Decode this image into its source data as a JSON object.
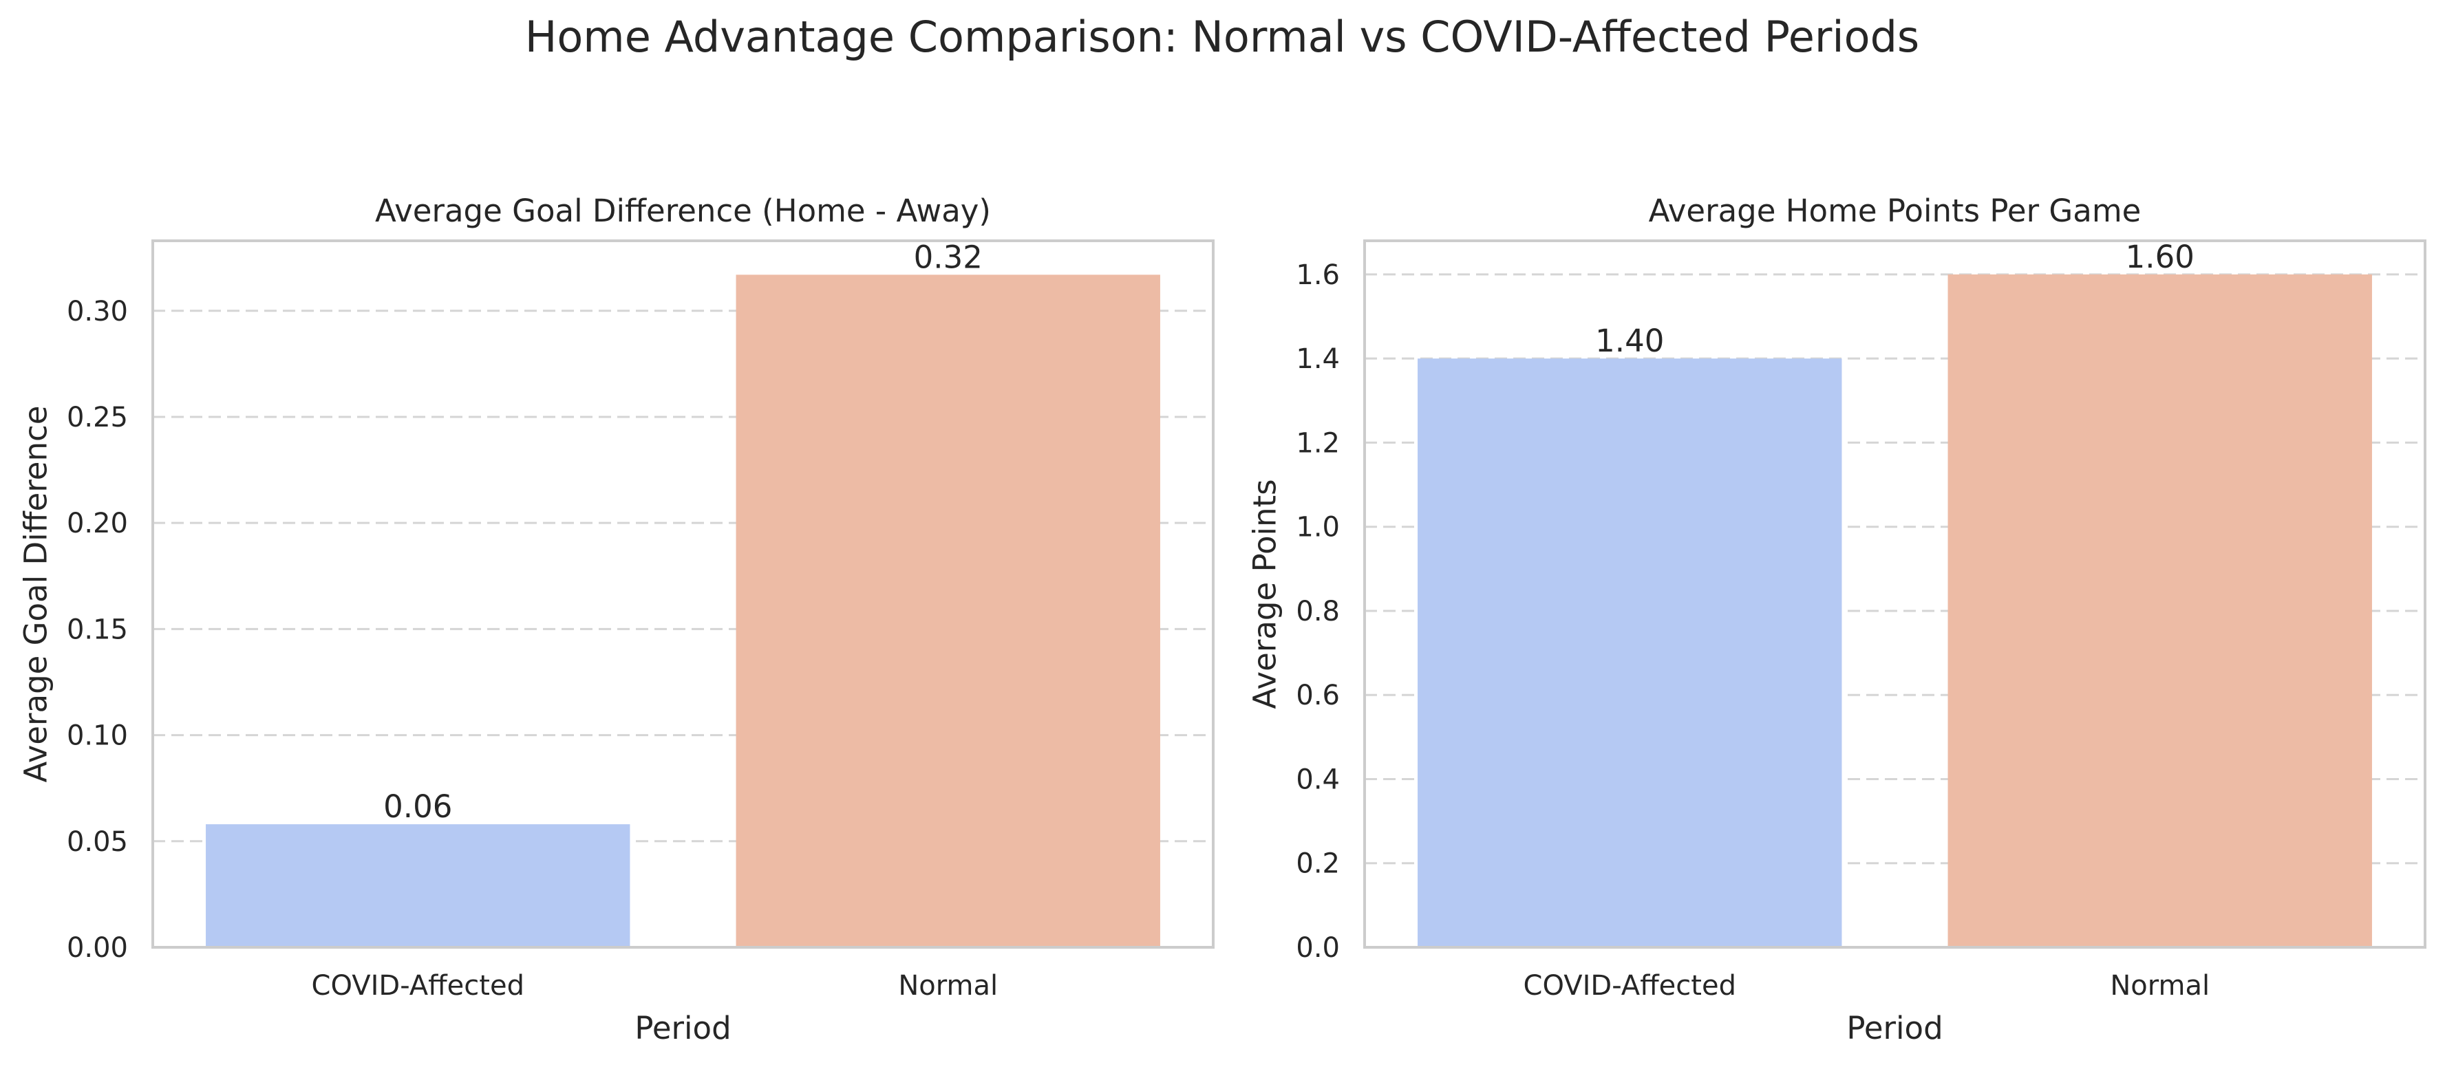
{
  "figure": {
    "suptitle": "Home Advantage Comparison: Normal vs COVID-Affected Periods"
  },
  "chart_data": [
    {
      "type": "bar",
      "title": "Average Goal Difference (Home - Away)",
      "xlabel": "Period",
      "ylabel": "Average Goal Difference",
      "categories": [
        "COVID-Affected",
        "Normal"
      ],
      "values": [
        0.058,
        0.317
      ],
      "value_labels": [
        "0.06",
        "0.32"
      ],
      "colors": [
        "#b5c9f3",
        "#edbba5"
      ],
      "ylim": [
        0,
        0.333
      ],
      "yticks": [
        0.0,
        0.05,
        0.1,
        0.15,
        0.2,
        0.25,
        0.3
      ],
      "ytick_labels": [
        "0.00",
        "0.05",
        "0.10",
        "0.15",
        "0.20",
        "0.25",
        "0.30"
      ],
      "grid": "y-dashed",
      "legend": "none"
    },
    {
      "type": "bar",
      "title": "Average Home Points Per Game",
      "xlabel": "Period",
      "ylabel": "Average Points",
      "categories": [
        "COVID-Affected",
        "Normal"
      ],
      "values": [
        1.4,
        1.6
      ],
      "value_labels": [
        "1.40",
        "1.60"
      ],
      "colors": [
        "#b5c9f3",
        "#edbba5"
      ],
      "ylim": [
        0,
        1.68
      ],
      "yticks": [
        0.0,
        0.2,
        0.4,
        0.6,
        0.8,
        1.0,
        1.2,
        1.4,
        1.6
      ],
      "ytick_labels": [
        "0.0",
        "0.2",
        "0.4",
        "0.6",
        "0.8",
        "1.0",
        "1.2",
        "1.4",
        "1.6"
      ],
      "grid": "y-dashed",
      "legend": "none"
    }
  ]
}
